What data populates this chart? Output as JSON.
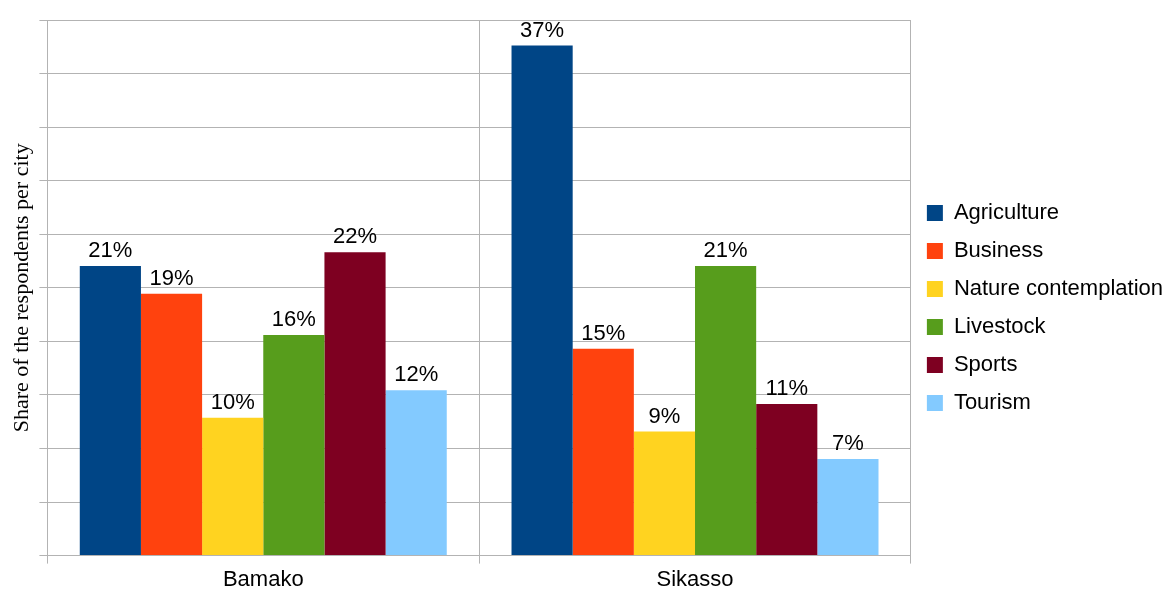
{
  "chart_data": {
    "type": "bar",
    "ylabel": "Share of the respondents per city",
    "categories": [
      "Bamako",
      "Sikasso"
    ],
    "grid": true,
    "legend": "right",
    "series": [
      {
        "name": "Agriculture",
        "color": "#004586",
        "values": [
          21,
          37
        ],
        "value_labels": [
          "21%",
          "37%"
        ]
      },
      {
        "name": "Business",
        "color": "#ff420e",
        "values": [
          19,
          15
        ],
        "value_labels": [
          "19%",
          "15%"
        ]
      },
      {
        "name": "Nature contemplation",
        "color": "#ffd320",
        "values": [
          10,
          9
        ],
        "value_labels": [
          "10%",
          "9%"
        ]
      },
      {
        "name": "Livestock",
        "color": "#579d1c",
        "values": [
          16,
          21
        ],
        "value_labels": [
          "16%",
          "21%"
        ]
      },
      {
        "name": "Sports",
        "color": "#7e0021",
        "values": [
          22,
          11
        ],
        "value_labels": [
          "22%",
          "11%"
        ]
      },
      {
        "name": "Tourism",
        "color": "#83caff",
        "values": [
          12,
          7
        ],
        "value_labels": [
          "12%",
          "7%"
        ]
      }
    ]
  }
}
